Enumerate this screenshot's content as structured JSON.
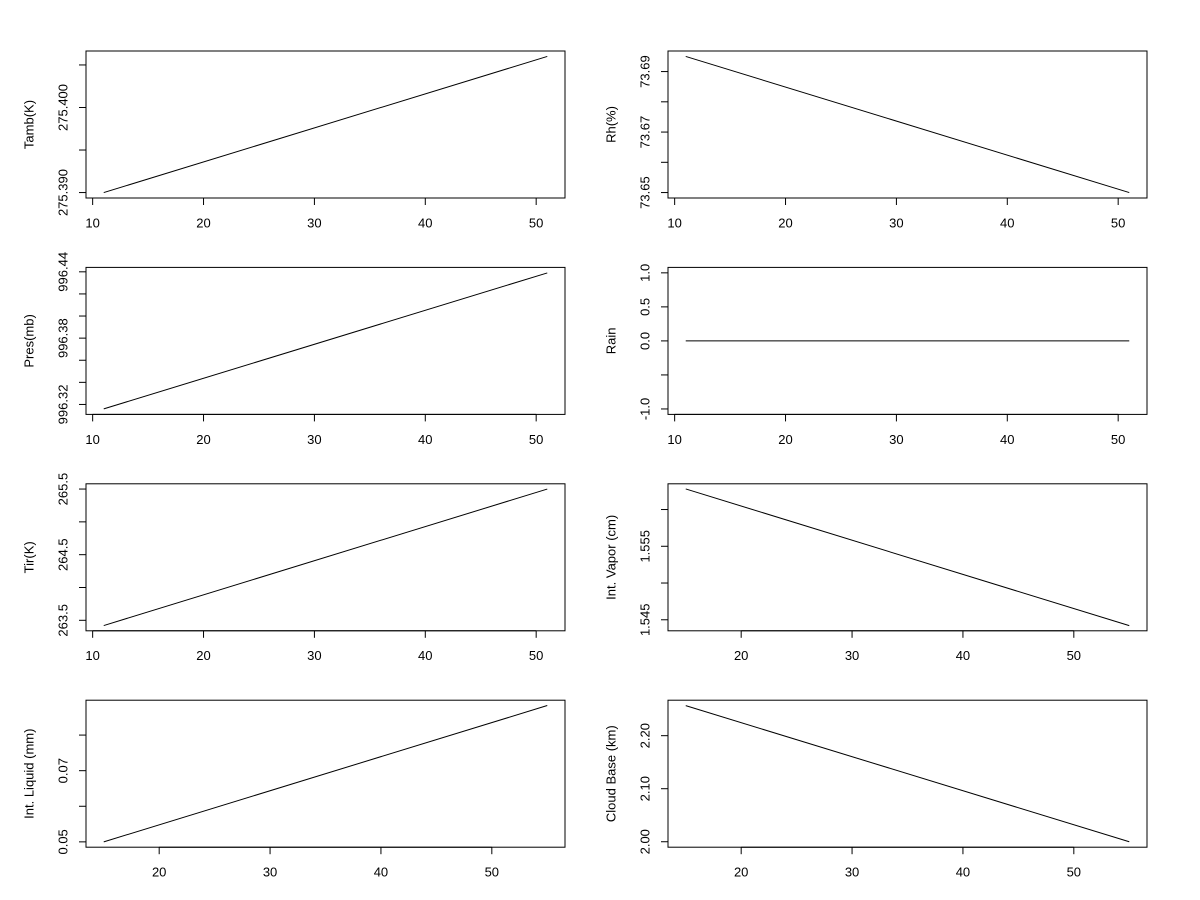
{
  "chart_data": [
    {
      "type": "line",
      "ylabel": "Tamb(K)",
      "color": "#000000",
      "x": [
        11,
        51
      ],
      "values": [
        275.39,
        275.406
      ],
      "xlim": [
        9.4,
        52.6
      ],
      "xticks": [
        10,
        20,
        30,
        40,
        50
      ],
      "ylim": [
        275.38936,
        275.40664
      ],
      "yticks": [
        {
          "value": 275.39,
          "label": "275.390"
        },
        {
          "value": 275.4,
          "label": "275.400"
        }
      ],
      "yminor": [
        275.395,
        275.405
      ]
    },
    {
      "type": "line",
      "ylabel": "Rh(%)",
      "color": "#000000",
      "x": [
        11,
        51
      ],
      "values": [
        73.695,
        73.65
      ],
      "xlim": [
        9.4,
        52.6
      ],
      "xticks": [
        10,
        20,
        30,
        40,
        50
      ],
      "ylim": [
        73.6482,
        73.6968
      ],
      "yticks": [
        73.65,
        73.67,
        73.69
      ],
      "yminor": [
        73.66,
        73.68
      ]
    },
    {
      "type": "line",
      "ylabel": "Pres(mb)",
      "color": "#000000",
      "x": [
        11,
        51
      ],
      "values": [
        996.316,
        996.439
      ],
      "xlim": [
        9.4,
        52.6
      ],
      "xticks": [
        10,
        20,
        30,
        40,
        50
      ],
      "ylim": [
        996.311,
        996.444
      ],
      "yticks": [
        996.32,
        996.38,
        996.44
      ],
      "yminor": [
        996.34,
        996.36,
        996.4,
        996.42
      ]
    },
    {
      "type": "line",
      "ylabel": "Rain",
      "color": "#000000",
      "x": [
        11,
        51
      ],
      "values": [
        0,
        0
      ],
      "xlim": [
        9.4,
        52.6
      ],
      "xticks": [
        10,
        20,
        30,
        40,
        50
      ],
      "ylim": [
        -1.08,
        1.08
      ],
      "yticks": [
        {
          "value": -1,
          "label": "-1.0"
        },
        {
          "value": 0,
          "label": "0.0"
        },
        0.5,
        {
          "value": 1,
          "label": "1.0"
        }
      ],
      "yminor": [
        -0.5
      ]
    },
    {
      "type": "line",
      "ylabel": "Tir(K)",
      "color": "#000000",
      "x": [
        11,
        51
      ],
      "values": [
        263.42,
        265.5
      ],
      "xlim": [
        9.4,
        52.6
      ],
      "xticks": [
        10,
        20,
        30,
        40,
        50
      ],
      "ylim": [
        263.34,
        265.58
      ],
      "yticks": [
        263.5,
        264.5,
        265.5
      ],
      "yminor": [
        264.0,
        265.0
      ]
    },
    {
      "type": "line",
      "ylabel": "Int. Vapor (cm)",
      "color": "#000000",
      "x": [
        15,
        55
      ],
      "values": [
        1.5628,
        1.5442
      ],
      "xlim": [
        13.4,
        56.6
      ],
      "xticks": [
        20,
        30,
        40,
        50
      ],
      "ylim": [
        1.5435,
        1.5635
      ],
      "yticks": [
        1.545,
        1.555
      ],
      "yminor": [
        1.55,
        1.56
      ]
    },
    {
      "type": "line",
      "ylabel": "Int. Liquid (mm)",
      "color": "#000000",
      "x": [
        15,
        55
      ],
      "values": [
        0.05,
        0.0883
      ],
      "xlim": [
        13.4,
        56.6
      ],
      "xticks": [
        20,
        30,
        40,
        50
      ],
      "ylim": [
        0.0485,
        0.0898
      ],
      "yticks": [
        0.05,
        0.07
      ],
      "yminor": [
        0.06,
        0.08
      ]
    },
    {
      "type": "line",
      "ylabel": "Cloud Base (km)",
      "color": "#000000",
      "x": [
        15,
        55
      ],
      "values": [
        2.2566,
        2.0
      ],
      "xlim": [
        13.4,
        56.6
      ],
      "xticks": [
        20,
        30,
        40,
        50
      ],
      "ylim": [
        1.9897,
        2.2669
      ],
      "yticks": [
        {
          "value": 2.0,
          "label": "2.00"
        },
        {
          "value": 2.1,
          "label": "2.10"
        },
        {
          "value": 2.2,
          "label": "2.20"
        }
      ]
    }
  ]
}
